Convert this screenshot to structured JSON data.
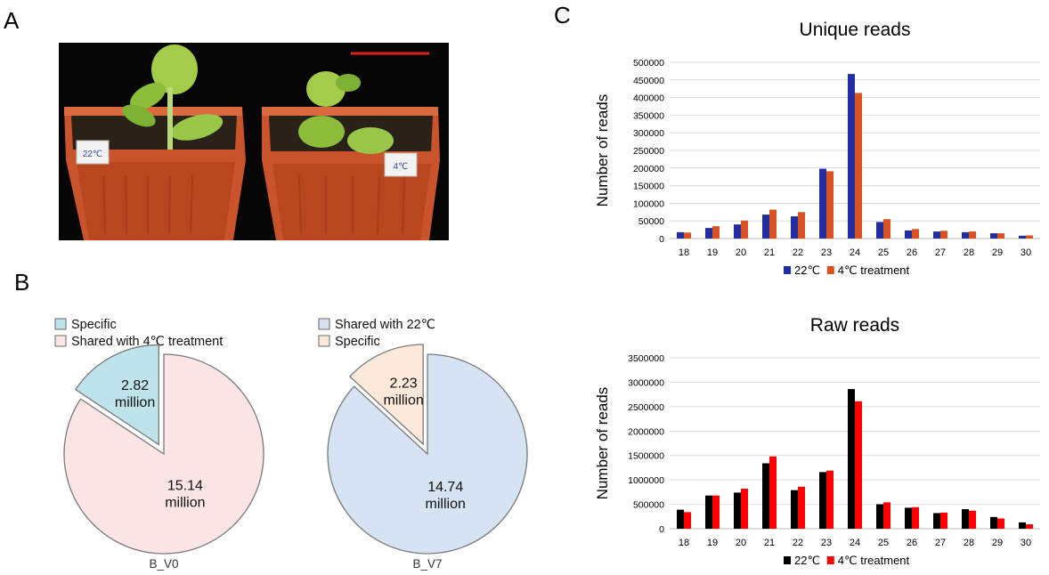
{
  "panels": {
    "a": "A",
    "b": "B",
    "c": "C"
  },
  "photo": {
    "scale_bar_color": "#e02020",
    "pot_left_label": "22℃",
    "pot_right_label": "4℃"
  },
  "pies": [
    {
      "name": "B_V0",
      "legend": [
        {
          "label": "Specific",
          "color": "#bfe3ea"
        },
        {
          "label": "Shared with 4℃ treatment",
          "color": "#fde5e5"
        }
      ],
      "slices": [
        {
          "label_line1": "2.82",
          "label_line2": "million",
          "value": 2.82,
          "color": "#bfe3ea",
          "exploded": true
        },
        {
          "label_line1": "15.14",
          "label_line2": "million",
          "value": 15.14,
          "color": "#fde5e5",
          "exploded": false
        }
      ],
      "caption": "B_V0"
    },
    {
      "name": "B_V7",
      "legend": [
        {
          "label": "Shared with 22℃",
          "color": "#d6e3f3"
        },
        {
          "label": "Specific",
          "color": "#fde9d9"
        }
      ],
      "slices": [
        {
          "label_line1": "2.23",
          "label_line2": "million",
          "value": 2.23,
          "color": "#fde9d9",
          "exploded": true
        },
        {
          "label_line1": "14.74",
          "label_line2": "million",
          "value": 14.74,
          "color": "#d6e3f3",
          "exploded": false
        }
      ],
      "caption": "B_V7"
    }
  ],
  "chart_data": [
    {
      "type": "bar",
      "title": "Unique reads",
      "ylabel": "Number of reads",
      "xlabel": "",
      "categories": [
        "18",
        "19",
        "20",
        "21",
        "22",
        "23",
        "24",
        "25",
        "26",
        "27",
        "28",
        "29",
        "30"
      ],
      "ylim": [
        0,
        500000
      ],
      "yticks": [
        "0",
        "50000",
        "100000",
        "150000",
        "200000",
        "250000",
        "300000",
        "350000",
        "400000",
        "450000",
        "500000"
      ],
      "grid": true,
      "legend_position": "bottom",
      "series": [
        {
          "name": "22℃",
          "color": "#1f2f9e",
          "values": [
            18000,
            30000,
            40000,
            68000,
            63000,
            198000,
            467000,
            47000,
            23000,
            20000,
            18000,
            15000,
            8000
          ]
        },
        {
          "name": "4℃ treatment",
          "color": "#d9531e",
          "values": [
            17000,
            35000,
            51000,
            82000,
            75000,
            191000,
            413000,
            55000,
            27000,
            22000,
            20000,
            15000,
            9000
          ]
        }
      ]
    },
    {
      "type": "bar",
      "title": "Raw reads",
      "ylabel": "Number of reads",
      "xlabel": "",
      "categories": [
        "18",
        "19",
        "20",
        "21",
        "22",
        "23",
        "24",
        "25",
        "26",
        "27",
        "28",
        "29",
        "30"
      ],
      "ylim": [
        0,
        3500000
      ],
      "yticks": [
        "0",
        "500000",
        "1000000",
        "1500000",
        "2000000",
        "2500000",
        "3000000",
        "3500000"
      ],
      "grid": true,
      "legend_position": "bottom",
      "series": [
        {
          "name": "22℃",
          "color": "#000000",
          "values": [
            390000,
            680000,
            740000,
            1340000,
            790000,
            1160000,
            2860000,
            500000,
            430000,
            320000,
            400000,
            240000,
            130000
          ]
        },
        {
          "name": "4℃ treatment",
          "color": "#ff0000",
          "values": [
            340000,
            680000,
            820000,
            1480000,
            860000,
            1190000,
            2610000,
            540000,
            440000,
            330000,
            370000,
            210000,
            90000
          ]
        }
      ]
    }
  ]
}
